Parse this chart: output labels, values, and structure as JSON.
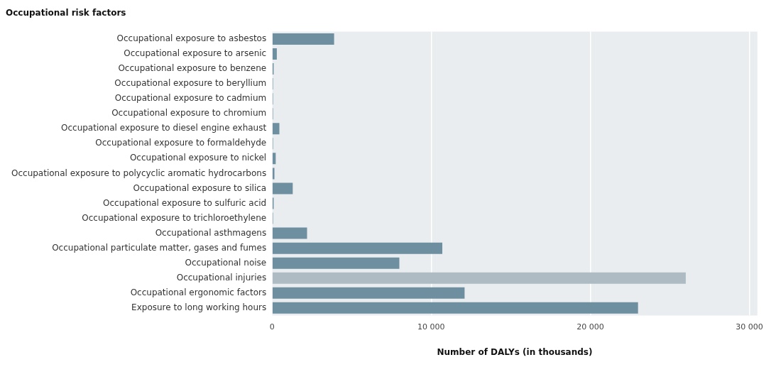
{
  "chart_data": {
    "type": "bar",
    "orientation": "horizontal",
    "title": "Occupational risk factors",
    "xlabel": "Number of DALYs (in thousands)",
    "categories": [
      "Occupational exposure to asbestos",
      "Occupational exposure to arsenic",
      "Occupational exposure to benzene",
      "Occupational exposure to beryllium",
      "Occupational exposure to cadmium",
      "Occupational exposure to chromium",
      "Occupational exposure to diesel engine exhaust",
      "Occupational exposure to formaldehyde",
      "Occupational exposure to nickel",
      "Occupational exposure to polycyclic aromatic hydrocarbons",
      "Occupational exposure to silica",
      "Occupational exposure to sulfuric acid",
      "Occupational exposure to trichloroethylene",
      "Occupational asthmagens",
      "Occupational particulate matter, gases and fumes",
      "Occupational noise",
      "Occupational injuries",
      "Occupational ergonomic factors",
      "Exposure to long working hours"
    ],
    "values": [
      3900,
      300,
      100,
      60,
      60,
      60,
      460,
      60,
      230,
      150,
      1300,
      100,
      60,
      2200,
      10700,
      8000,
      26000,
      12100,
      23000
    ],
    "colors": [
      "#6e8fa0",
      "#6e8fa0",
      "#6e8fa0",
      "#6e8fa0",
      "#6e8fa0",
      "#6e8fa0",
      "#6e8fa0",
      "#6e8fa0",
      "#6e8fa0",
      "#6e8fa0",
      "#6e8fa0",
      "#6e8fa0",
      "#6e8fa0",
      "#6e8fa0",
      "#6e8fa0",
      "#6e8fa0",
      "#aebbc3",
      "#6e8fa0",
      "#6e8fa0"
    ],
    "xlim": [
      0,
      30500
    ],
    "xticks": [
      {
        "value": 0,
        "label": "0"
      },
      {
        "value": 10000,
        "label": "10 000"
      },
      {
        "value": 20000,
        "label": "20 000"
      },
      {
        "value": 30000,
        "label": "30 000"
      }
    ],
    "grid": "x",
    "legend": false
  }
}
